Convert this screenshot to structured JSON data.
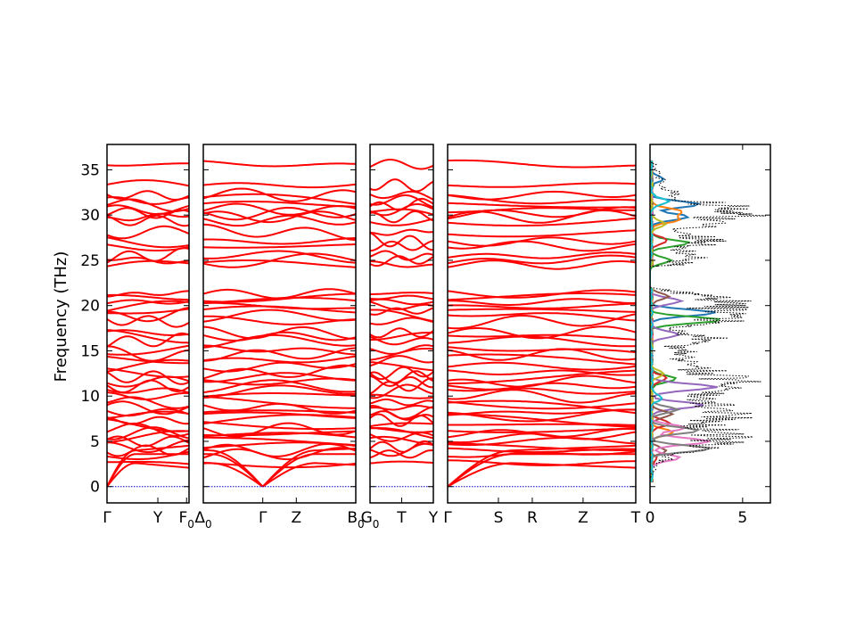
{
  "chart_data": [
    {
      "type": "line",
      "title": "",
      "ylabel": "Frequency (THz)",
      "ylim": [
        -1.8,
        37.8
      ],
      "y_ticks": [
        0,
        5,
        10,
        15,
        20,
        25,
        30,
        35
      ],
      "y_tick_labels": [
        "0",
        "5",
        "10",
        "15",
        "20",
        "25",
        "30",
        "35"
      ],
      "band_color": "#ff0000",
      "zero_line_color": "#0000cc",
      "segments": [
        {
          "labels": [
            {
              "main": "Γ",
              "sub": ""
            },
            {
              "main": "Y",
              "sub": ""
            },
            {
              "main": "F",
              "sub": "0"
            }
          ],
          "label_pos": [
            0,
            0.62,
            0.97
          ]
        },
        {
          "labels": [
            {
              "main": "Δ",
              "sub": "0"
            },
            {
              "main": "Γ",
              "sub": ""
            },
            {
              "main": "Z",
              "sub": ""
            },
            {
              "main": "B",
              "sub": "0"
            }
          ],
          "label_pos": [
            0,
            0.39,
            0.61,
            1
          ]
        },
        {
          "labels": [
            {
              "main": "G",
              "sub": "0"
            },
            {
              "main": "T",
              "sub": ""
            },
            {
              "main": "Y",
              "sub": ""
            }
          ],
          "label_pos": [
            0,
            0.5,
            1
          ]
        },
        {
          "labels": [
            {
              "main": "Γ",
              "sub": ""
            },
            {
              "main": "S",
              "sub": ""
            },
            {
              "main": "R",
              "sub": ""
            },
            {
              "main": "Z",
              "sub": ""
            },
            {
              "main": "T",
              "sub": ""
            }
          ],
          "label_pos": [
            0,
            0.27,
            0.45,
            0.72,
            1
          ]
        }
      ],
      "band_levels": [
        2.6,
        3.6,
        4.0,
        4.4,
        5.0,
        5.5,
        5.9,
        6.3,
        6.8,
        7.3,
        7.8,
        8.2,
        8.7,
        9.3,
        10.0,
        10.6,
        11.1,
        11.6,
        12.1,
        12.6,
        13.3,
        14.0,
        14.6,
        15.1,
        16.1,
        16.6,
        17.0,
        18.3,
        18.9,
        19.4,
        19.9,
        20.4,
        20.9,
        21.3,
        24.5,
        25.0,
        25.5,
        26.6,
        27.1,
        28.1,
        29.4,
        29.8,
        30.2,
        30.6,
        31.1,
        31.6,
        32.2,
        33.3,
        35.6
      ],
      "acoustic_targets": [
        2.6,
        3.6,
        4.0
      ]
    },
    {
      "type": "area",
      "title": "",
      "xlabel": "",
      "xlim": [
        0,
        6.5
      ],
      "x_ticks": [
        0,
        5
      ],
      "x_tick_labels": [
        "0",
        "5"
      ],
      "total_dos_style": "dotted black",
      "total_dos": [
        {
          "f": 1.0,
          "v": 0.05
        },
        {
          "f": 2.5,
          "v": 0.5
        },
        {
          "f": 3.5,
          "v": 2.0
        },
        {
          "f": 4.5,
          "v": 5.5
        },
        {
          "f": 5.5,
          "v": 6.0
        },
        {
          "f": 6.5,
          "v": 4.5
        },
        {
          "f": 7.5,
          "v": 5.5
        },
        {
          "f": 8.5,
          "v": 6.0
        },
        {
          "f": 9.5,
          "v": 4.0
        },
        {
          "f": 10.5,
          "v": 4.5
        },
        {
          "f": 11.5,
          "v": 6.2
        },
        {
          "f": 12.5,
          "v": 5.0
        },
        {
          "f": 13.5,
          "v": 2.5
        },
        {
          "f": 14.5,
          "v": 3.0
        },
        {
          "f": 15.5,
          "v": 2.0
        },
        {
          "f": 16.5,
          "v": 4.5
        },
        {
          "f": 17.5,
          "v": 1.5
        },
        {
          "f": 18.5,
          "v": 6.0
        },
        {
          "f": 19.5,
          "v": 5.5
        },
        {
          "f": 20.5,
          "v": 6.0
        },
        {
          "f": 21.3,
          "v": 3.0
        },
        {
          "f": 22.0,
          "v": 0.0
        },
        {
          "f": 24.3,
          "v": 0.0
        },
        {
          "f": 24.5,
          "v": 2.0
        },
        {
          "f": 25.3,
          "v": 3.5
        },
        {
          "f": 26.5,
          "v": 3.0
        },
        {
          "f": 27.2,
          "v": 5.0
        },
        {
          "f": 28.2,
          "v": 2.0
        },
        {
          "f": 29.5,
          "v": 6.5
        },
        {
          "f": 30.2,
          "v": 6.5
        },
        {
          "f": 31.0,
          "v": 5.5
        },
        {
          "f": 32.0,
          "v": 2.0
        },
        {
          "f": 33.5,
          "v": 1.0
        },
        {
          "f": 35.6,
          "v": 0.4
        },
        {
          "f": 36.0,
          "v": 0.0
        }
      ],
      "partial_dos": [
        {
          "color": "#1f77b4",
          "points": [
            {
              "f": 19.2,
              "v": 3.5
            },
            {
              "f": 29.8,
              "v": 2.0
            },
            {
              "f": 31.2,
              "v": 2.6
            },
            {
              "f": 34.0,
              "v": 0.6
            }
          ]
        },
        {
          "color": "#ff7f0e",
          "points": [
            {
              "f": 6.0,
              "v": 1.2
            },
            {
              "f": 29.5,
              "v": 1.5
            },
            {
              "f": 30.4,
              "v": 1.6
            }
          ]
        },
        {
          "color": "#2ca02c",
          "points": [
            {
              "f": 18.4,
              "v": 3.8
            },
            {
              "f": 26.9,
              "v": 2.0
            },
            {
              "f": 11.9,
              "v": 1.4
            },
            {
              "f": 25.0,
              "v": 1.0
            }
          ]
        },
        {
          "color": "#d62728",
          "points": [
            {
              "f": 3.0,
              "v": 0.3
            },
            {
              "f": 7.0,
              "v": 1.0
            },
            {
              "f": 12.0,
              "v": 0.8
            },
            {
              "f": 27.2,
              "v": 0.9
            }
          ]
        },
        {
          "color": "#9467bd",
          "points": [
            {
              "f": 11.0,
              "v": 3.5
            },
            {
              "f": 9.0,
              "v": 2.8
            },
            {
              "f": 16.8,
              "v": 1.5
            },
            {
              "f": 20.5,
              "v": 1.6
            }
          ]
        },
        {
          "color": "#8c564b",
          "points": [
            {
              "f": 4.0,
              "v": 0.8
            },
            {
              "f": 8.0,
              "v": 1.1
            },
            {
              "f": 21.0,
              "v": 0.9
            }
          ]
        },
        {
          "color": "#e377c2",
          "points": [
            {
              "f": 5.0,
              "v": 3.2
            },
            {
              "f": 3.2,
              "v": 1.5
            },
            {
              "f": 6.5,
              "v": 1.8
            }
          ]
        },
        {
          "color": "#7f7f7f",
          "points": [
            {
              "f": 4.2,
              "v": 3.2
            },
            {
              "f": 6.2,
              "v": 2.6
            },
            {
              "f": 8.5,
              "v": 1.4
            }
          ]
        },
        {
          "color": "#bcbd22",
          "points": [
            {
              "f": 12.5,
              "v": 0.7
            },
            {
              "f": 29.0,
              "v": 0.8
            }
          ]
        },
        {
          "color": "#17becf",
          "points": [
            {
              "f": 9.8,
              "v": 0.6
            },
            {
              "f": 31.5,
              "v": 0.9
            }
          ]
        }
      ]
    }
  ]
}
